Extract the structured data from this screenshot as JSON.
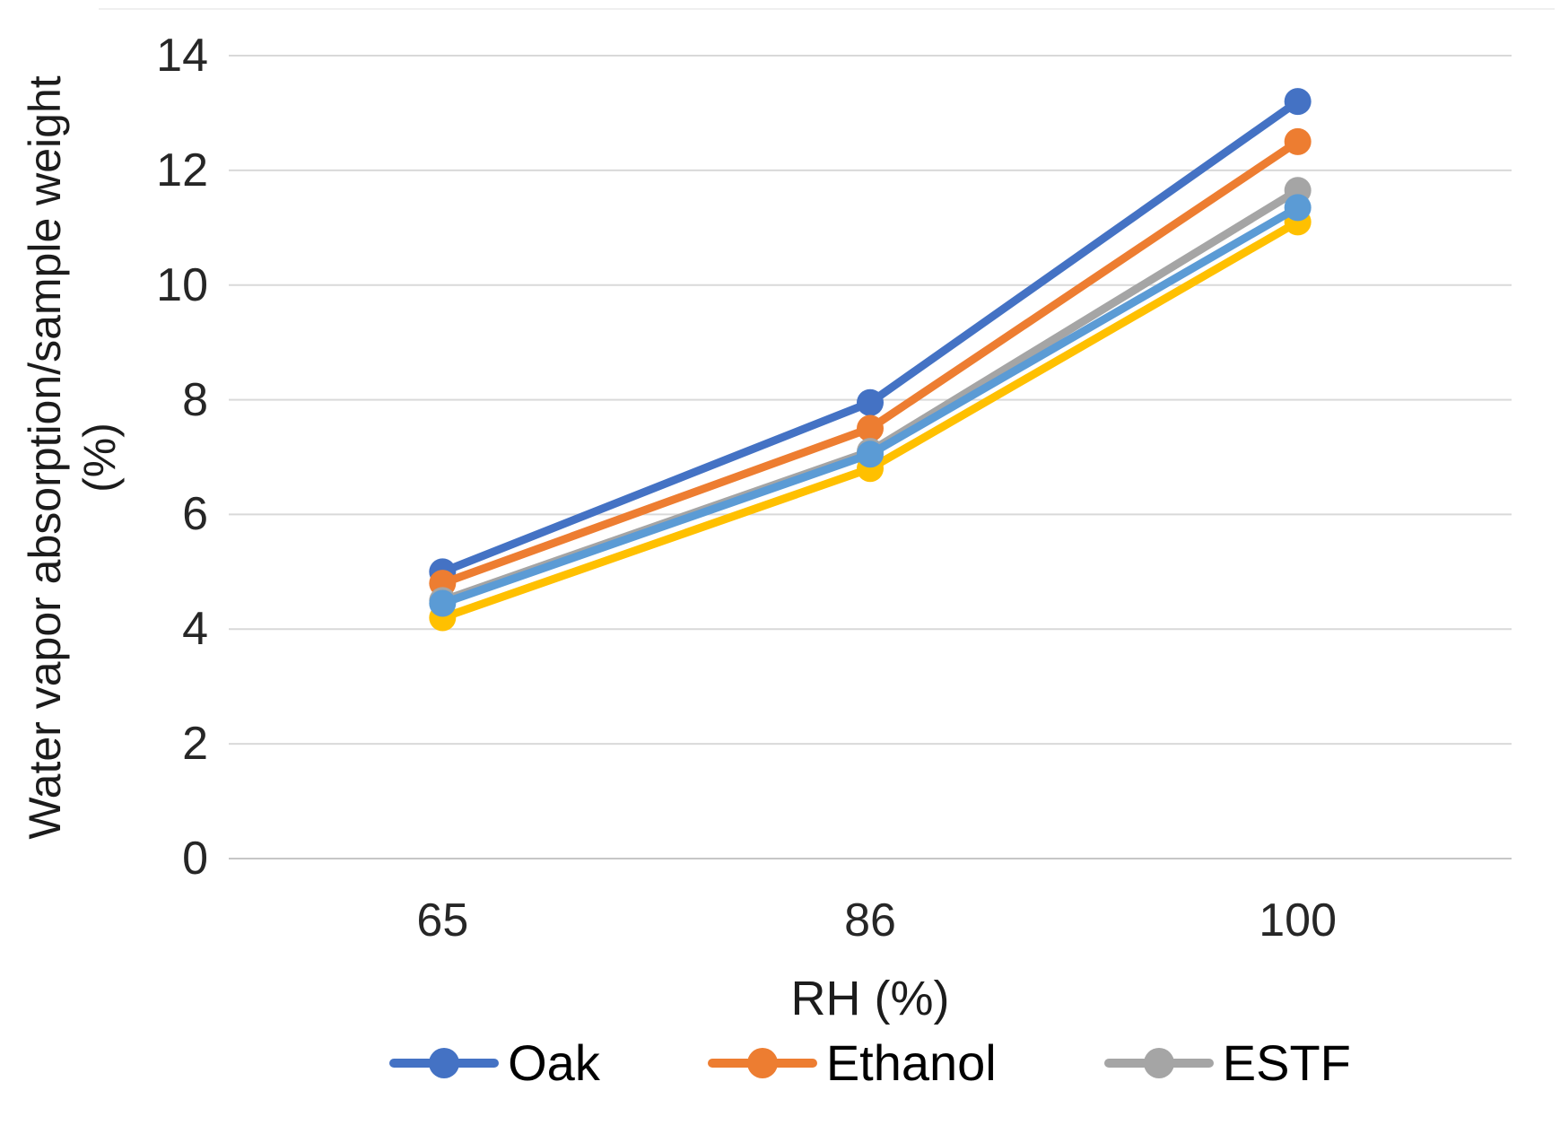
{
  "chart_data": {
    "type": "line",
    "title": "",
    "xlabel": "RH (%)",
    "ylabel": "Water vapor absorption/sample weight (%)",
    "ylabel_lines": [
      "Water vapor absorption/sample weight",
      "(%)"
    ],
    "categories": [
      "65",
      "86",
      "100"
    ],
    "ylim": [
      0,
      14
    ],
    "ytick_step": 2,
    "yticks": [
      "0",
      "2",
      "4",
      "6",
      "8",
      "10",
      "12",
      "14"
    ],
    "grid": "horizontal-on",
    "gridline_color": "#d9d9d9",
    "axis_line_color": "#c6c6c6",
    "text_color": "#262626",
    "marker_style": "circle",
    "series": [
      {
        "name": "Oak",
        "color": "#4472C4",
        "values": [
          5.0,
          7.95,
          13.2
        ],
        "in_visible_legend": true
      },
      {
        "name": "Ethanol",
        "color": "#ED7D31",
        "values": [
          4.8,
          7.5,
          12.5
        ],
        "in_visible_legend": true
      },
      {
        "name": "ESTF",
        "color": "#A5A5A5",
        "values": [
          4.5,
          7.1,
          11.65
        ],
        "in_visible_legend": true
      },
      {
        "name": "",
        "color": "#FFC000",
        "values": [
          4.2,
          6.8,
          11.1
        ],
        "in_visible_legend": false
      },
      {
        "name": "",
        "color": "#5B9BD5",
        "values": [
          4.45,
          7.05,
          11.35
        ],
        "in_visible_legend": false
      }
    ],
    "legend": {
      "position": "bottom",
      "entries": [
        {
          "label": "Oak",
          "color": "#4472C4"
        },
        {
          "label": "Ethanol",
          "color": "#ED7D31"
        },
        {
          "label": "ESTF",
          "color": "#A5A5A5"
        }
      ]
    }
  }
}
